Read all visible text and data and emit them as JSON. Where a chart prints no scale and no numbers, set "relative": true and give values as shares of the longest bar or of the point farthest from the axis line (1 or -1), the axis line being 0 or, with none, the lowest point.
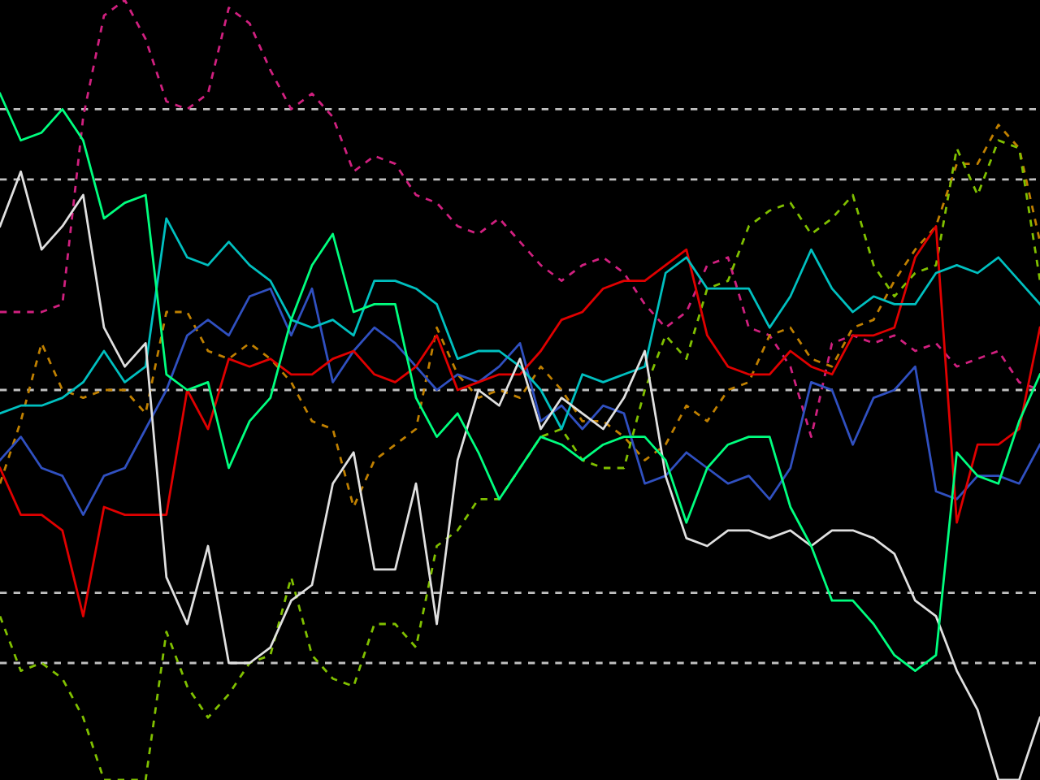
{
  "chart_data": {
    "type": "line",
    "relative": true,
    "legend": false,
    "grid": false,
    "marker": "none",
    "categories": [
      null,
      null,
      null,
      null,
      null,
      null,
      null,
      null,
      null,
      null,
      null,
      null,
      null,
      null,
      null,
      null,
      null,
      null,
      null,
      null,
      null,
      null,
      null,
      null,
      null,
      null,
      null,
      null,
      null,
      null,
      null,
      null,
      null,
      null,
      null,
      null,
      null,
      null,
      null,
      null,
      null,
      null,
      null,
      null,
      null,
      null,
      null,
      null,
      null,
      null,
      null
    ],
    "ref_lines": [
      {
        "axis": "y",
        "value": 0.86,
        "color": "#c0c0c0",
        "line_style": "dashed"
      },
      {
        "axis": "y",
        "value": 0.77,
        "color": "#c0c0c0",
        "line_style": "dashed"
      },
      {
        "axis": "y",
        "value": 0.5,
        "color": "#c0c0c0",
        "line_style": "dashed"
      },
      {
        "axis": "y",
        "value": 0.24,
        "color": "#c0c0c0",
        "line_style": "dashed"
      },
      {
        "axis": "y",
        "value": 0.15,
        "color": "#c0c0c0",
        "line_style": "dashed"
      }
    ],
    "series": [
      {
        "color": "#d0207f",
        "line_style": "dashed",
        "values": [
          0.6,
          0.6,
          0.6,
          0.61,
          0.85,
          0.98,
          1,
          0.95,
          0.87,
          0.86,
          0.88,
          0.99,
          0.97,
          0.91,
          0.86,
          0.88,
          0.85,
          0.78,
          0.8,
          0.79,
          0.75,
          0.74,
          0.71,
          0.7,
          0.72,
          0.69,
          0.66,
          0.64,
          0.66,
          0.67,
          0.65,
          0.61,
          0.58,
          0.6,
          0.66,
          0.67,
          0.58,
          0.57,
          0.53,
          0.44,
          0.56,
          0.57,
          0.56,
          0.57,
          0.55,
          0.56,
          0.53,
          0.54,
          0.55,
          0.51,
          0.5
        ]
      },
      {
        "color": "#c08000",
        "line_style": "dashed",
        "values": [
          0.38,
          0.46,
          0.56,
          0.5,
          0.49,
          0.5,
          0.5,
          0.47,
          0.6,
          0.6,
          0.55,
          0.54,
          0.56,
          0.54,
          0.51,
          0.46,
          0.45,
          0.35,
          0.41,
          0.43,
          0.45,
          0.58,
          0.52,
          0.49,
          0.5,
          0.49,
          0.53,
          0.5,
          0.46,
          0.46,
          0.44,
          0.41,
          0.43,
          0.48,
          0.46,
          0.5,
          0.51,
          0.57,
          0.58,
          0.54,
          0.53,
          0.58,
          0.59,
          0.64,
          0.68,
          0.71,
          0.79,
          0.79,
          0.84,
          0.81,
          0.69
        ]
      },
      {
        "color": "#80c000",
        "line_style": "dashed",
        "values": [
          0.21,
          0.14,
          0.15,
          0.13,
          0.08,
          0,
          0,
          0,
          0.19,
          0.12,
          0.08,
          0.11,
          0.15,
          0.16,
          0.26,
          0.16,
          0.13,
          0.12,
          0.2,
          0.2,
          0.17,
          0.3,
          0.32,
          0.36,
          0.36,
          0.4,
          0.44,
          0.45,
          0.41,
          0.4,
          0.4,
          0.5,
          0.57,
          0.54,
          0.63,
          0.64,
          0.71,
          0.73,
          0.74,
          0.7,
          0.72,
          0.75,
          0.66,
          0.62,
          0.65,
          0.66,
          0.81,
          0.75,
          0.82,
          0.81,
          0.64
        ]
      },
      {
        "color": "#3050c0",
        "line_style": "solid",
        "values": [
          0.41,
          0.44,
          0.4,
          0.39,
          0.34,
          0.39,
          0.4,
          0.45,
          0.5,
          0.57,
          0.59,
          0.57,
          0.62,
          0.63,
          0.57,
          0.63,
          0.51,
          0.55,
          0.58,
          0.56,
          0.53,
          0.5,
          0.52,
          0.51,
          0.53,
          0.56,
          0.46,
          0.48,
          0.45,
          0.48,
          0.47,
          0.38,
          0.39,
          0.42,
          0.4,
          0.38,
          0.39,
          0.36,
          0.4,
          0.51,
          0.5,
          0.43,
          0.49,
          0.5,
          0.53,
          0.37,
          0.36,
          0.39,
          0.39,
          0.38,
          0.43
        ]
      },
      {
        "color": "#e00000",
        "line_style": "solid",
        "values": [
          0.4,
          0.34,
          0.34,
          0.32,
          0.21,
          0.35,
          0.34,
          0.34,
          0.34,
          0.5,
          0.45,
          0.54,
          0.53,
          0.54,
          0.52,
          0.52,
          0.54,
          0.55,
          0.52,
          0.51,
          0.53,
          0.57,
          0.5,
          0.51,
          0.52,
          0.52,
          0.55,
          0.59,
          0.6,
          0.63,
          0.64,
          0.64,
          0.66,
          0.68,
          0.57,
          0.53,
          0.52,
          0.52,
          0.55,
          0.53,
          0.52,
          0.57,
          0.57,
          0.58,
          0.67,
          0.71,
          0.33,
          0.43,
          0.43,
          0.45,
          0.58
        ]
      },
      {
        "color": "#00c0c0",
        "line_style": "solid",
        "values": [
          0.47,
          0.48,
          0.48,
          0.49,
          0.51,
          0.55,
          0.51,
          0.53,
          0.72,
          0.67,
          0.66,
          0.69,
          0.66,
          0.64,
          0.59,
          0.58,
          0.59,
          0.57,
          0.64,
          0.64,
          0.63,
          0.61,
          0.54,
          0.55,
          0.55,
          0.53,
          0.5,
          0.45,
          0.52,
          0.51,
          0.52,
          0.53,
          0.65,
          0.67,
          0.63,
          0.63,
          0.63,
          0.58,
          0.62,
          0.68,
          0.63,
          0.6,
          0.62,
          0.61,
          0.61,
          0.65,
          0.66,
          0.65,
          0.67,
          0.64,
          0.61
        ]
      },
      {
        "color": "#e0e0e0",
        "line_style": "solid",
        "values": [
          0.71,
          0.78,
          0.68,
          0.71,
          0.75,
          0.58,
          0.53,
          0.56,
          0.26,
          0.2,
          0.3,
          0.15,
          0.15,
          0.17,
          0.23,
          0.25,
          0.38,
          0.42,
          0.27,
          0.27,
          0.38,
          0.2,
          0.41,
          0.5,
          0.48,
          0.54,
          0.45,
          0.49,
          0.47,
          0.45,
          0.49,
          0.55,
          0.39,
          0.31,
          0.3,
          0.32,
          0.32,
          0.31,
          0.32,
          0.3,
          0.32,
          0.32,
          0.31,
          0.29,
          0.23,
          0.21,
          0.14,
          0.09,
          0,
          0,
          0.08
        ]
      },
      {
        "color": "#00ff7f",
        "line_style": "solid",
        "values": [
          0.88,
          0.82,
          0.83,
          0.86,
          0.82,
          0.72,
          0.74,
          0.75,
          0.52,
          0.5,
          0.51,
          0.4,
          0.46,
          0.49,
          0.59,
          0.66,
          0.7,
          0.6,
          0.61,
          0.61,
          0.49,
          0.44,
          0.47,
          0.42,
          0.36,
          0.4,
          0.44,
          0.43,
          0.41,
          0.43,
          0.44,
          0.44,
          0.41,
          0.33,
          0.4,
          0.43,
          0.44,
          0.44,
          0.35,
          0.3,
          0.23,
          0.23,
          0.2,
          0.16,
          0.14,
          0.16,
          0.42,
          0.39,
          0.38,
          0.46,
          0.52
        ]
      }
    ]
  }
}
